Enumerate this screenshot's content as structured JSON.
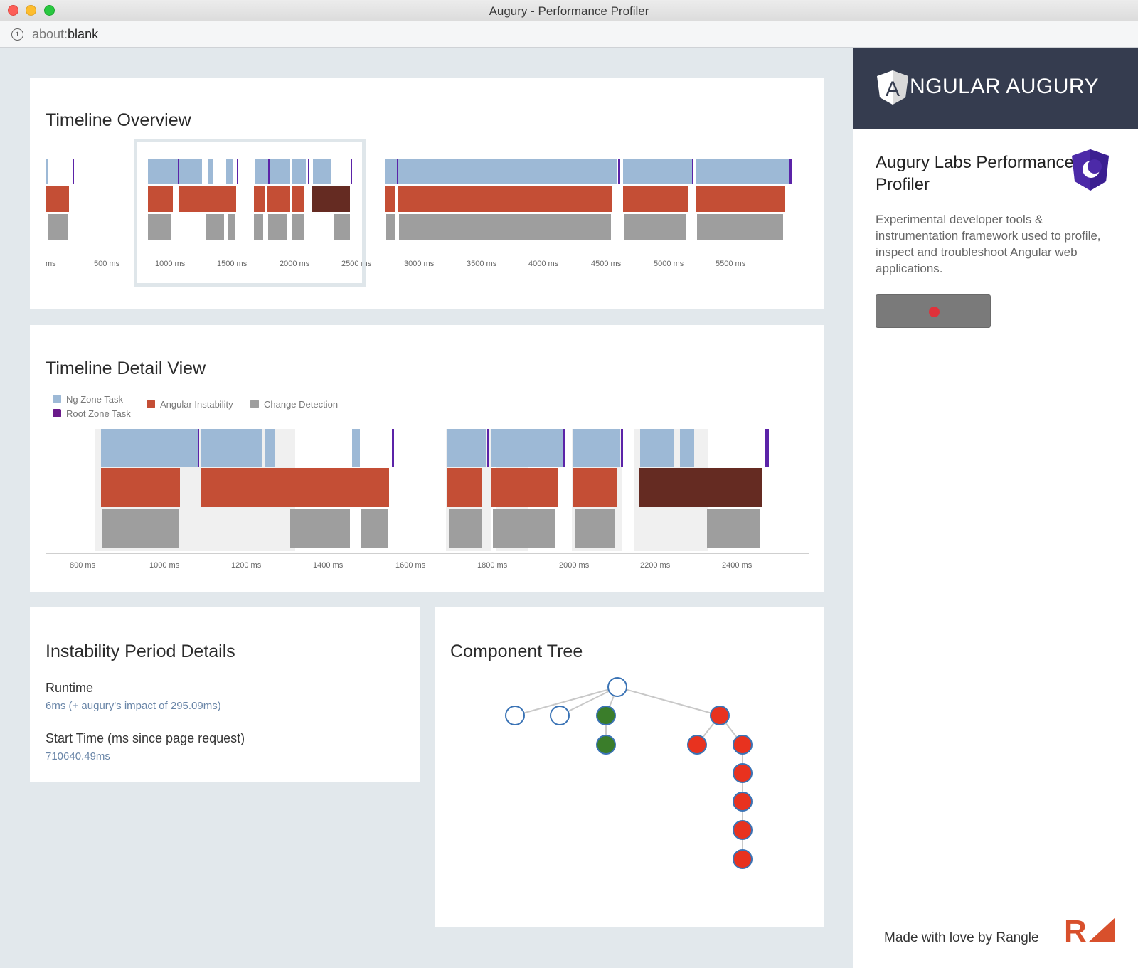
{
  "window": {
    "title": "Augury - Performance Profiler",
    "url_prefix": "about:",
    "url_main": "blank"
  },
  "overview": {
    "title": "Timeline Overview",
    "ticks": [
      "ms",
      "500 ms",
      "1000 ms",
      "1500 ms",
      "2000 ms",
      "2500 ms",
      "3000 ms",
      "3500 ms",
      "4000 ms",
      "4500 ms",
      "5000 ms",
      "5500 ms"
    ]
  },
  "detail": {
    "title": "Timeline Detail View",
    "legend": {
      "ng_zone": "Ng Zone Task",
      "root_zone": "Root Zone Task",
      "angular_instability": "Angular Instability",
      "change_detection": "Change Detection"
    },
    "ticks": [
      "800 ms",
      "1000 ms",
      "1200 ms",
      "1400 ms",
      "1600 ms",
      "1800 ms",
      "2000 ms",
      "2200 ms",
      "2400 ms"
    ]
  },
  "instability": {
    "title": "Instability Period Details",
    "runtime_label": "Runtime",
    "runtime_value": "6ms (+ augury's impact of 295.09ms)",
    "start_label": "Start Time (ms since page request)",
    "start_value": "710640.49ms"
  },
  "tree": {
    "title": "Component Tree"
  },
  "sidebar": {
    "brand_letter": "A",
    "brand_text": "NGULAR AUGURY",
    "title": "Augury Labs Performance Profiler",
    "description": "Experimental developer tools & instrumentation framework used to profile, inspect and troubleshoot Angular web applications.",
    "footer": "Made with love by Rangle",
    "rangle_letter": "R"
  },
  "colors": {
    "ng_zone": "#9db9d6",
    "root_zone": "#5b23a8",
    "instability": "#c44e35",
    "instability_selected": "#652b22",
    "change_detection": "#9e9e9e",
    "node_green": "#3a7d2a",
    "node_red": "#e8321f",
    "node_outline": "#3a73b5",
    "brand_bg": "#353c4f"
  }
}
